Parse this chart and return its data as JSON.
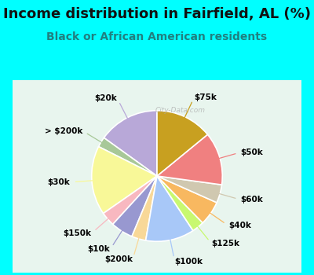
{
  "title": "Income distribution in Fairfield, AL (%)",
  "subtitle": "Black or African American residents",
  "bg_outer": "#00FFFF",
  "bg_inner_left": "#d8efe8",
  "bg_inner_right": "#f0f8f0",
  "watermark": "City-Data.com",
  "slices": [
    {
      "label": "$20k",
      "value": 15.0,
      "color": "#b8a8d8"
    },
    {
      "label": "> $200k",
      "value": 2.5,
      "color": "#a8c898"
    },
    {
      "label": "$30k",
      "value": 17.0,
      "color": "#f8f898"
    },
    {
      "label": "$150k",
      "value": 3.5,
      "color": "#f8b8c0"
    },
    {
      "label": "$10k",
      "value": 5.5,
      "color": "#9898d0"
    },
    {
      "label": "$200k",
      "value": 3.5,
      "color": "#f8d898"
    },
    {
      "label": "$100k",
      "value": 12.0,
      "color": "#a8c8f8"
    },
    {
      "label": "$125k",
      "value": 3.0,
      "color": "#c8f870"
    },
    {
      "label": "$40k",
      "value": 6.0,
      "color": "#f8b860"
    },
    {
      "label": "$60k",
      "value": 4.5,
      "color": "#d0c8b0"
    },
    {
      "label": "$50k",
      "value": 13.0,
      "color": "#f08080"
    },
    {
      "label": "$75k",
      "value": 14.0,
      "color": "#c8a020"
    }
  ],
  "start_angle": 90,
  "label_fontsize": 7.5,
  "title_fontsize": 13,
  "subtitle_fontsize": 10,
  "subtitle_color": "#208080"
}
